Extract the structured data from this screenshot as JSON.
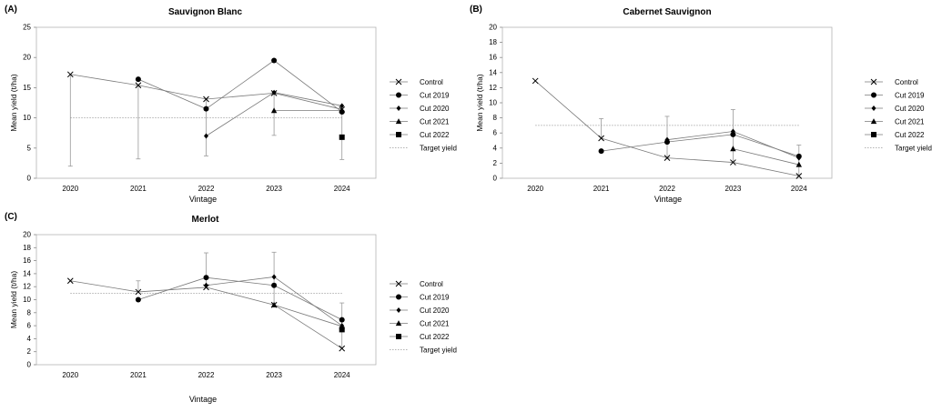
{
  "chart_data": [
    {
      "type": "line",
      "panel_label": "(A)",
      "title": "Sauvignon Blanc",
      "xlabel": "Vintage",
      "ylabel": "Mean yield (t/ha)",
      "categories": [
        "2020",
        "2021",
        "2022",
        "2023",
        "2024"
      ],
      "ylim": [
        0,
        25
      ],
      "yticks": [
        "0",
        "5",
        "10",
        "15",
        "20",
        "25"
      ],
      "grid": false,
      "legend_position": "right",
      "series": [
        {
          "name": "Control",
          "marker": "x",
          "values": [
            17.2,
            15.4,
            13.1,
            14.1,
            11.4
          ],
          "err": [
            2.0,
            3.2,
            3.7,
            7.1,
            3.1
          ]
        },
        {
          "name": "Cut 2019",
          "marker": "circle",
          "values": [
            null,
            16.4,
            11.5,
            19.5,
            11.0
          ]
        },
        {
          "name": "Cut 2020",
          "marker": "diamond",
          "values": [
            null,
            null,
            7.0,
            14.2,
            12.0
          ]
        },
        {
          "name": "Cut 2021",
          "marker": "triangle",
          "values": [
            null,
            null,
            null,
            11.2,
            11.2
          ]
        },
        {
          "name": "Cut 2022",
          "marker": "square",
          "values": [
            null,
            null,
            null,
            null,
            6.8
          ]
        }
      ],
      "target": {
        "name": "Target yield",
        "value": 10
      }
    },
    {
      "type": "line",
      "panel_label": "(B)",
      "title": "Cabernet Sauvignon",
      "xlabel": "Vintage",
      "ylabel": "Mean yield (t/ha)",
      "categories": [
        "2020",
        "2021",
        "2022",
        "2023",
        "2024"
      ],
      "ylim": [
        0,
        20
      ],
      "yticks": [
        "0",
        "2",
        "4",
        "6",
        "8",
        "10",
        "12",
        "14",
        "16",
        "18",
        "20"
      ],
      "grid": false,
      "legend_position": "right",
      "series": [
        {
          "name": "Control",
          "marker": "x",
          "values": [
            12.9,
            5.3,
            2.7,
            2.1,
            0.3
          ],
          "err": [
            null,
            7.9,
            8.2,
            9.1,
            4.4
          ]
        },
        {
          "name": "Cut 2019",
          "marker": "circle",
          "values": [
            null,
            3.6,
            4.8,
            5.8,
            2.9
          ]
        },
        {
          "name": "Cut 2020",
          "marker": "diamond",
          "values": [
            null,
            null,
            5.1,
            6.2,
            2.7
          ]
        },
        {
          "name": "Cut 2021",
          "marker": "triangle",
          "values": [
            null,
            null,
            null,
            3.9,
            1.8
          ]
        },
        {
          "name": "Cut 2022",
          "marker": "square",
          "values": [
            null,
            null,
            null,
            null,
            null
          ]
        }
      ],
      "target": {
        "name": "Target yield",
        "value": 7
      }
    },
    {
      "type": "line",
      "panel_label": "(C)",
      "title": "Merlot",
      "xlabel": "Vintage",
      "ylabel": "Mean yield (t/ha)",
      "categories": [
        "2020",
        "2021",
        "2022",
        "2023",
        "2024"
      ],
      "ylim": [
        0,
        20
      ],
      "yticks": [
        "0",
        "2",
        "4",
        "6",
        "8",
        "10",
        "12",
        "14",
        "16",
        "18",
        "20"
      ],
      "grid": false,
      "legend_position": "right",
      "series": [
        {
          "name": "Control",
          "marker": "x",
          "values": [
            12.9,
            11.2,
            11.9,
            9.2,
            2.5
          ],
          "err": [
            null,
            12.9,
            17.2,
            17.3,
            9.5
          ]
        },
        {
          "name": "Cut 2019",
          "marker": "circle",
          "values": [
            null,
            10.0,
            13.4,
            12.2,
            6.9
          ]
        },
        {
          "name": "Cut 2020",
          "marker": "diamond",
          "values": [
            null,
            null,
            12.2,
            13.5,
            6.0
          ]
        },
        {
          "name": "Cut 2021",
          "marker": "triangle",
          "values": [
            null,
            null,
            null,
            9.2,
            5.9
          ]
        },
        {
          "name": "Cut 2022",
          "marker": "square",
          "values": [
            null,
            null,
            null,
            null,
            5.4
          ]
        }
      ],
      "target": {
        "name": "Target yield",
        "value": 11
      }
    }
  ]
}
